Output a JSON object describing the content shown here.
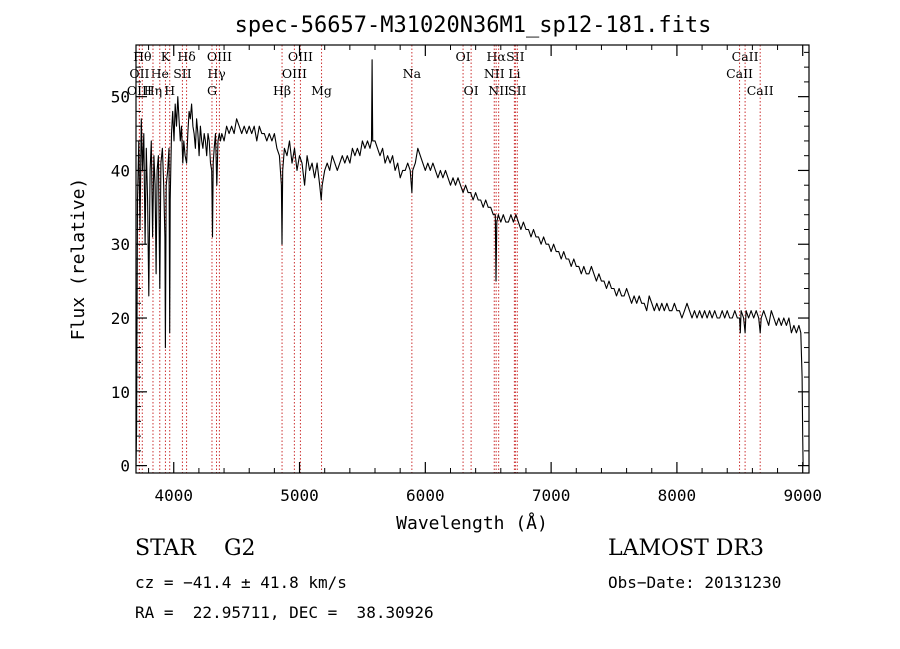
{
  "chart_data": {
    "type": "line",
    "title": "spec-56657-M31020N36M1_sp12-181.fits",
    "xlabel": "Wavelength (Å)",
    "ylabel": "Flux (relative)",
    "xlim": [
      3700,
      9050
    ],
    "ylim": [
      -1,
      57
    ],
    "xticks": [
      4000,
      5000,
      6000,
      7000,
      8000,
      9000
    ],
    "yticks": [
      0,
      10,
      20,
      30,
      40,
      50
    ],
    "x_minor_step": 200,
    "y_minor_step": 2,
    "line_color": "#000000",
    "marker_color": "#cc3333",
    "spectrum": [
      [
        3700,
        0
      ],
      [
        3705,
        5
      ],
      [
        3712,
        36
      ],
      [
        3722,
        44
      ],
      [
        3732,
        32
      ],
      [
        3742,
        47
      ],
      [
        3752,
        40
      ],
      [
        3762,
        45
      ],
      [
        3772,
        30
      ],
      [
        3782,
        43
      ],
      [
        3792,
        36
      ],
      [
        3802,
        23
      ],
      [
        3812,
        40
      ],
      [
        3822,
        44
      ],
      [
        3832,
        31
      ],
      [
        3842,
        42
      ],
      [
        3852,
        38
      ],
      [
        3860,
        26
      ],
      [
        3868,
        40
      ],
      [
        3878,
        42
      ],
      [
        3889,
        24
      ],
      [
        3898,
        41
      ],
      [
        3910,
        43
      ],
      [
        3920,
        38
      ],
      [
        3930,
        31
      ],
      [
        3934,
        16
      ],
      [
        3940,
        38
      ],
      [
        3952,
        40
      ],
      [
        3962,
        43
      ],
      [
        3968,
        18
      ],
      [
        3972,
        36
      ],
      [
        3982,
        45
      ],
      [
        3992,
        48
      ],
      [
        4002,
        44
      ],
      [
        4012,
        49
      ],
      [
        4022,
        46
      ],
      [
        4032,
        50
      ],
      [
        4042,
        47
      ],
      [
        4052,
        44
      ],
      [
        4062,
        46
      ],
      [
        4072,
        41
      ],
      [
        4080,
        44
      ],
      [
        4090,
        42
      ],
      [
        4102,
        41
      ],
      [
        4112,
        45
      ],
      [
        4122,
        48
      ],
      [
        4132,
        47
      ],
      [
        4142,
        49
      ],
      [
        4152,
        46
      ],
      [
        4162,
        45
      ],
      [
        4172,
        43
      ],
      [
        4182,
        47
      ],
      [
        4192,
        45
      ],
      [
        4202,
        42
      ],
      [
        4212,
        46
      ],
      [
        4222,
        44
      ],
      [
        4232,
        43
      ],
      [
        4242,
        45
      ],
      [
        4252,
        44
      ],
      [
        4262,
        42
      ],
      [
        4272,
        45
      ],
      [
        4282,
        44
      ],
      [
        4292,
        41
      ],
      [
        4302,
        40
      ],
      [
        4308,
        31
      ],
      [
        4314,
        41
      ],
      [
        4322,
        43
      ],
      [
        4332,
        45
      ],
      [
        4342,
        38
      ],
      [
        4352,
        44
      ],
      [
        4362,
        45
      ],
      [
        4372,
        44
      ],
      [
        4382,
        45
      ],
      [
        4400,
        44
      ],
      [
        4420,
        46
      ],
      [
        4440,
        45
      ],
      [
        4460,
        46
      ],
      [
        4480,
        45
      ],
      [
        4500,
        47
      ],
      [
        4520,
        46
      ],
      [
        4540,
        45
      ],
      [
        4560,
        46
      ],
      [
        4580,
        45
      ],
      [
        4600,
        46
      ],
      [
        4620,
        45
      ],
      [
        4640,
        46
      ],
      [
        4660,
        44
      ],
      [
        4680,
        46
      ],
      [
        4700,
        45
      ],
      [
        4720,
        45
      ],
      [
        4740,
        44
      ],
      [
        4760,
        45
      ],
      [
        4780,
        44
      ],
      [
        4800,
        45
      ],
      [
        4820,
        43
      ],
      [
        4840,
        42
      ],
      [
        4856,
        38
      ],
      [
        4861,
        30
      ],
      [
        4866,
        40
      ],
      [
        4880,
        43
      ],
      [
        4900,
        42
      ],
      [
        4920,
        44
      ],
      [
        4940,
        41
      ],
      [
        4960,
        43
      ],
      [
        4980,
        40
      ],
      [
        5000,
        42
      ],
      [
        5020,
        41
      ],
      [
        5040,
        38
      ],
      [
        5060,
        42
      ],
      [
        5080,
        40
      ],
      [
        5100,
        41
      ],
      [
        5120,
        39
      ],
      [
        5140,
        41
      ],
      [
        5160,
        38
      ],
      [
        5172,
        36
      ],
      [
        5180,
        38
      ],
      [
        5200,
        40
      ],
      [
        5220,
        41
      ],
      [
        5240,
        40
      ],
      [
        5260,
        42
      ],
      [
        5280,
        41
      ],
      [
        5300,
        40
      ],
      [
        5320,
        41
      ],
      [
        5340,
        42
      ],
      [
        5360,
        41
      ],
      [
        5380,
        42
      ],
      [
        5400,
        41
      ],
      [
        5420,
        43
      ],
      [
        5440,
        42
      ],
      [
        5460,
        43
      ],
      [
        5480,
        42
      ],
      [
        5500,
        44
      ],
      [
        5520,
        43
      ],
      [
        5540,
        44
      ],
      [
        5560,
        43
      ],
      [
        5572,
        44
      ],
      [
        5577,
        55
      ],
      [
        5582,
        44
      ],
      [
        5600,
        44
      ],
      [
        5620,
        43
      ],
      [
        5640,
        42
      ],
      [
        5660,
        43
      ],
      [
        5680,
        41
      ],
      [
        5700,
        42
      ],
      [
        5720,
        41
      ],
      [
        5740,
        42
      ],
      [
        5760,
        40
      ],
      [
        5780,
        41
      ],
      [
        5800,
        39
      ],
      [
        5820,
        40
      ],
      [
        5840,
        40
      ],
      [
        5860,
        41
      ],
      [
        5880,
        40
      ],
      [
        5893,
        37
      ],
      [
        5900,
        40
      ],
      [
        5920,
        41
      ],
      [
        5940,
        43
      ],
      [
        5960,
        42
      ],
      [
        5980,
        41
      ],
      [
        6000,
        40
      ],
      [
        6020,
        41
      ],
      [
        6040,
        40
      ],
      [
        6060,
        41
      ],
      [
        6080,
        40
      ],
      [
        6100,
        39
      ],
      [
        6120,
        40
      ],
      [
        6140,
        39
      ],
      [
        6160,
        40
      ],
      [
        6180,
        39
      ],
      [
        6200,
        38
      ],
      [
        6220,
        39
      ],
      [
        6240,
        38
      ],
      [
        6260,
        39
      ],
      [
        6280,
        38
      ],
      [
        6300,
        37
      ],
      [
        6320,
        38
      ],
      [
        6340,
        37
      ],
      [
        6360,
        37
      ],
      [
        6380,
        36
      ],
      [
        6400,
        37
      ],
      [
        6420,
        36
      ],
      [
        6440,
        36
      ],
      [
        6460,
        35
      ],
      [
        6480,
        36
      ],
      [
        6500,
        35
      ],
      [
        6520,
        35
      ],
      [
        6540,
        34
      ],
      [
        6556,
        34
      ],
      [
        6562,
        25
      ],
      [
        6568,
        33
      ],
      [
        6580,
        34
      ],
      [
        6600,
        33
      ],
      [
        6620,
        34
      ],
      [
        6640,
        33
      ],
      [
        6660,
        33
      ],
      [
        6680,
        34
      ],
      [
        6700,
        33
      ],
      [
        6720,
        34
      ],
      [
        6740,
        33
      ],
      [
        6760,
        32
      ],
      [
        6780,
        33
      ],
      [
        6800,
        32
      ],
      [
        6820,
        32
      ],
      [
        6840,
        31
      ],
      [
        6860,
        32
      ],
      [
        6880,
        31
      ],
      [
        6900,
        31
      ],
      [
        6920,
        30
      ],
      [
        6940,
        31
      ],
      [
        6960,
        30
      ],
      [
        6980,
        30
      ],
      [
        7000,
        29
      ],
      [
        7020,
        30
      ],
      [
        7040,
        29
      ],
      [
        7060,
        29
      ],
      [
        7080,
        28
      ],
      [
        7100,
        29
      ],
      [
        7120,
        28
      ],
      [
        7140,
        28
      ],
      [
        7160,
        27
      ],
      [
        7180,
        28
      ],
      [
        7200,
        27
      ],
      [
        7220,
        27
      ],
      [
        7240,
        26
      ],
      [
        7260,
        27
      ],
      [
        7280,
        26
      ],
      [
        7300,
        26
      ],
      [
        7320,
        27
      ],
      [
        7340,
        26
      ],
      [
        7360,
        25
      ],
      [
        7380,
        26
      ],
      [
        7400,
        25
      ],
      [
        7420,
        25
      ],
      [
        7440,
        24
      ],
      [
        7460,
        25
      ],
      [
        7480,
        24
      ],
      [
        7500,
        24
      ],
      [
        7520,
        23
      ],
      [
        7540,
        24
      ],
      [
        7560,
        23
      ],
      [
        7580,
        23
      ],
      [
        7600,
        24
      ],
      [
        7620,
        23
      ],
      [
        7640,
        22
      ],
      [
        7660,
        23
      ],
      [
        7680,
        22
      ],
      [
        7700,
        23
      ],
      [
        7720,
        22
      ],
      [
        7740,
        22
      ],
      [
        7760,
        21
      ],
      [
        7780,
        23
      ],
      [
        7800,
        22
      ],
      [
        7820,
        21
      ],
      [
        7840,
        22
      ],
      [
        7860,
        21
      ],
      [
        7880,
        22
      ],
      [
        7900,
        21
      ],
      [
        7920,
        22
      ],
      [
        7940,
        21
      ],
      [
        7960,
        21
      ],
      [
        7980,
        22
      ],
      [
        8000,
        21
      ],
      [
        8020,
        21
      ],
      [
        8040,
        20
      ],
      [
        8060,
        21
      ],
      [
        8080,
        22
      ],
      [
        8100,
        21
      ],
      [
        8120,
        20
      ],
      [
        8140,
        21
      ],
      [
        8160,
        20
      ],
      [
        8180,
        21
      ],
      [
        8200,
        20
      ],
      [
        8220,
        21
      ],
      [
        8240,
        20
      ],
      [
        8260,
        21
      ],
      [
        8280,
        20
      ],
      [
        8300,
        21
      ],
      [
        8320,
        20
      ],
      [
        8340,
        20
      ],
      [
        8360,
        21
      ],
      [
        8380,
        20
      ],
      [
        8400,
        21
      ],
      [
        8420,
        20
      ],
      [
        8440,
        20
      ],
      [
        8460,
        21
      ],
      [
        8480,
        20
      ],
      [
        8498,
        20
      ],
      [
        8504,
        18
      ],
      [
        8510,
        21
      ],
      [
        8530,
        20
      ],
      [
        8542,
        18
      ],
      [
        8550,
        21
      ],
      [
        8570,
        20
      ],
      [
        8590,
        21
      ],
      [
        8610,
        20
      ],
      [
        8630,
        21
      ],
      [
        8650,
        20
      ],
      [
        8662,
        18
      ],
      [
        8670,
        20
      ],
      [
        8690,
        21
      ],
      [
        8710,
        20
      ],
      [
        8730,
        19
      ],
      [
        8750,
        21
      ],
      [
        8770,
        20
      ],
      [
        8790,
        19
      ],
      [
        8810,
        20
      ],
      [
        8830,
        19
      ],
      [
        8850,
        20
      ],
      [
        8870,
        19
      ],
      [
        8890,
        20
      ],
      [
        8910,
        18
      ],
      [
        8930,
        19
      ],
      [
        8950,
        18
      ],
      [
        8970,
        19
      ],
      [
        8985,
        18
      ],
      [
        8995,
        12
      ],
      [
        9000,
        4
      ],
      [
        9003,
        0
      ]
    ],
    "line_markers": [
      {
        "label": "Hθ",
        "x": 3750,
        "row": 1
      },
      {
        "label": "OII",
        "x": 3727,
        "row": 2
      },
      {
        "label": "OIII",
        "x": 3727,
        "row": 3
      },
      {
        "label": "K",
        "x": 3934,
        "row": 1
      },
      {
        "label": "He",
        "x": 3889,
        "row": 2
      },
      {
        "label": "Hη",
        "x": 3835,
        "row": 3
      },
      {
        "label": "SII",
        "x": 4069,
        "row": 2
      },
      {
        "label": "Hδ",
        "x": 4102,
        "row": 1
      },
      {
        "label": "H",
        "x": 3968,
        "row": 3
      },
      {
        "label": "OIII",
        "x": 4363,
        "row": 1
      },
      {
        "label": "Hγ",
        "x": 4340,
        "row": 2
      },
      {
        "label": "G",
        "x": 4304,
        "row": 3
      },
      {
        "label": "OIII",
        "x": 5007,
        "row": 1
      },
      {
        "label": "OIII",
        "x": 4959,
        "row": 2
      },
      {
        "label": "Hβ",
        "x": 4861,
        "row": 3
      },
      {
        "label": "Mg",
        "x": 5175,
        "row": 3
      },
      {
        "label": "Na",
        "x": 5893,
        "row": 2
      },
      {
        "label": "OI",
        "x": 6300,
        "row": 1
      },
      {
        "label": "OI",
        "x": 6364,
        "row": 3
      },
      {
        "label": "Hα",
        "x": 6563,
        "row": 1
      },
      {
        "label": "SII",
        "x": 6716,
        "row": 1
      },
      {
        "label": "NII",
        "x": 6548,
        "row": 2
      },
      {
        "label": "Li",
        "x": 6708,
        "row": 2
      },
      {
        "label": "NII",
        "x": 6583,
        "row": 3
      },
      {
        "label": "SII",
        "x": 6731,
        "row": 3
      },
      {
        "label": "CaII",
        "x": 8542,
        "row": 1
      },
      {
        "label": "CaII",
        "x": 8498,
        "row": 2
      },
      {
        "label": "CaII",
        "x": 8662,
        "row": 3
      }
    ]
  },
  "footer": {
    "object_type": "STAR    G2",
    "survey": "LAMOST DR3",
    "cz": "cz = −41.4 ± 41.8 km/s",
    "obs_date": "Obs−Date: 20131230",
    "coords": "RA =  22.95711, DEC =  38.30926"
  }
}
